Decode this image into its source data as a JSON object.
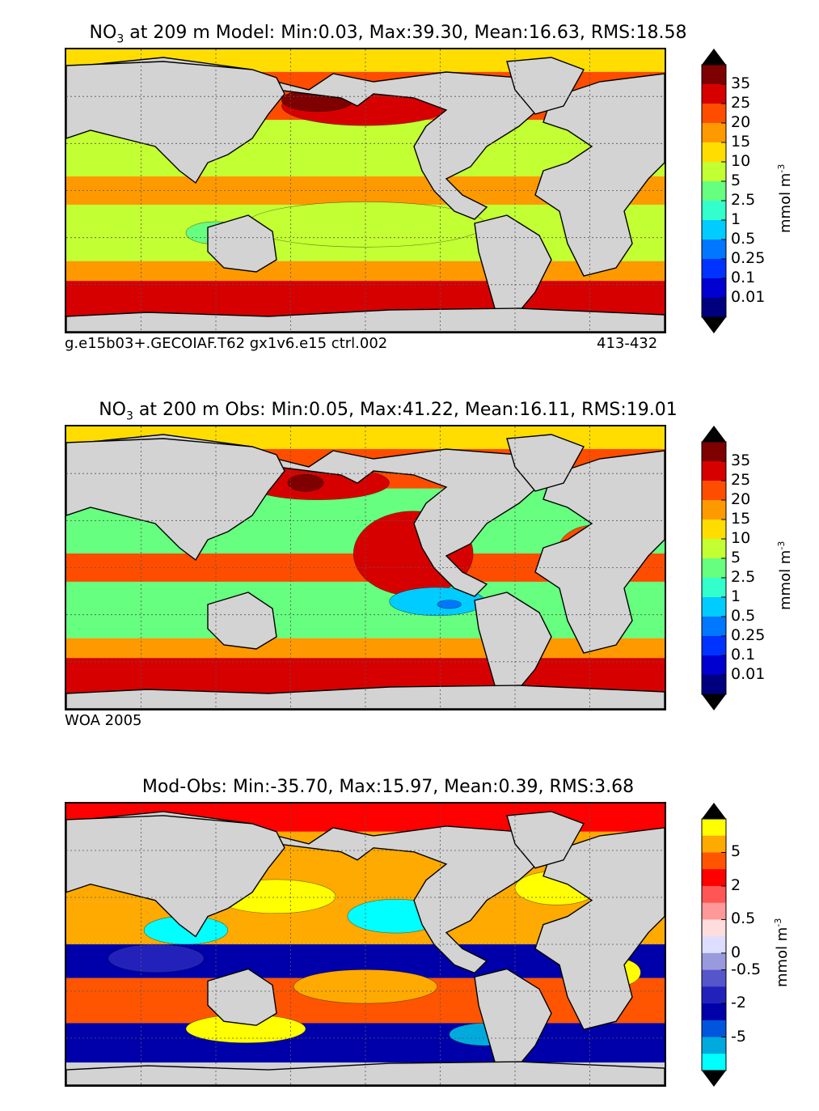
{
  "panels": [
    {
      "title_prefix": "NO",
      "title_sub": "3",
      "title_rest": " at 209 m Model: Min:0.03, Max:39.30, Mean:16.63, RMS:18.58",
      "footer_left": "g.e15b03+.GECOIAF.T62 gx1v6.e15 ctrl.002",
      "footer_right": "413-432",
      "colorbar": {
        "ticks": [
          "35",
          "25",
          "20",
          "15",
          "10",
          "5",
          "2.5",
          "1",
          "0.5",
          "0.25",
          "0.1",
          "0.01"
        ],
        "colors": [
          "#7f0000",
          "#d70000",
          "#ff4d00",
          "#ff9900",
          "#ffdd00",
          "#c2ff33",
          "#66ff7f",
          "#33ffcc",
          "#00ccff",
          "#0077ff",
          "#0033ff",
          "#0000d0",
          "#00007f"
        ],
        "over_color": "#000000",
        "under_color": "#000000",
        "units": "mmol m",
        "units_sup": "-3"
      }
    },
    {
      "title_prefix": "NO",
      "title_sub": "3",
      "title_rest": " at 200 m Obs: Min:0.05, Max:41.22, Mean:16.11, RMS:19.01",
      "footer_left": "WOA 2005",
      "footer_right": "",
      "colorbar": {
        "ticks": [
          "35",
          "25",
          "20",
          "15",
          "10",
          "5",
          "2.5",
          "1",
          "0.5",
          "0.25",
          "0.1",
          "0.01"
        ],
        "colors": [
          "#7f0000",
          "#d70000",
          "#ff4d00",
          "#ff9900",
          "#ffdd00",
          "#c2ff33",
          "#66ff7f",
          "#33ffcc",
          "#00ccff",
          "#0077ff",
          "#0033ff",
          "#0000d0",
          "#00007f"
        ],
        "over_color": "#000000",
        "under_color": "#000000",
        "units": "mmol m",
        "units_sup": "-3"
      }
    },
    {
      "title_prefix": "",
      "title_sub": "",
      "title_rest": "Mod-Obs: Min:-35.70, Max:15.97, Mean:0.39, RMS:3.68",
      "footer_left": "",
      "footer_right": "",
      "colorbar": {
        "ticks": [
          "5",
          "2",
          "0.5",
          "0",
          "-0.5",
          "-2",
          "-5"
        ],
        "colors": [
          "#ffff00",
          "#ffaa00",
          "#ff5500",
          "#ff0000",
          "#ff5555",
          "#ff9999",
          "#ffdddd",
          "#ddddff",
          "#9999dd",
          "#5555cc",
          "#2222bb",
          "#0000aa",
          "#0055dd",
          "#00aadd",
          "#00ffff"
        ],
        "over_color": "#000000",
        "under_color": "#000000",
        "units": "mmol m",
        "units_sup": "-3"
      }
    }
  ],
  "map_colors": {
    "land": "#d3d3d3",
    "coast": "#000000",
    "grid": "#555555",
    "panel1_fill": [
      "#ff9900",
      "#c2ff33",
      "#d70000"
    ],
    "panel2_fill": [
      "#ff4d00",
      "#66ff7f",
      "#d70000"
    ],
    "panel3_fill": [
      "#ffaa00",
      "#ff5500",
      "#0000aa",
      "#00ffff"
    ]
  }
}
